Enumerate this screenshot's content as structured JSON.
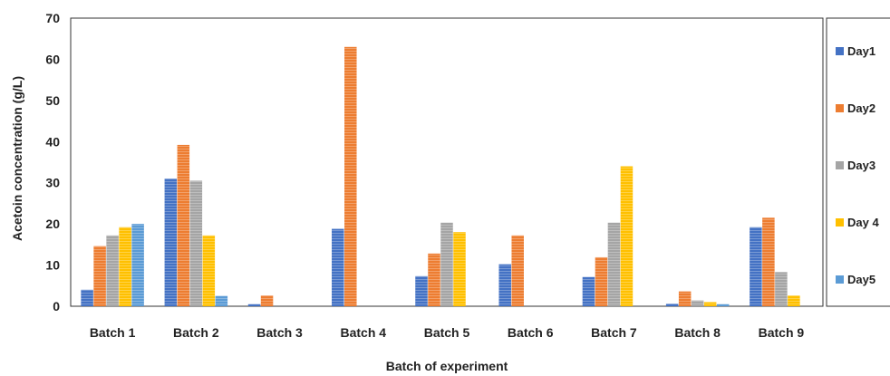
{
  "chart_data": {
    "type": "bar",
    "title": "",
    "xlabel": "Batch of experiment",
    "ylabel": "Acetoin concentration (g/L)",
    "ylim": [
      0,
      70
    ],
    "yticks": [
      0,
      10,
      20,
      30,
      40,
      50,
      60,
      70
    ],
    "grid": false,
    "legend_position": "right",
    "categories": [
      "Batch 1",
      "Batch 2",
      "Batch 3",
      "Batch 4",
      "Batch 5",
      "Batch 6",
      "Batch 7",
      "Batch 8",
      "Batch 9"
    ],
    "series": [
      {
        "name": "Day1",
        "color": "#4472c4",
        "values": [
          4.0,
          31.0,
          0.5,
          18.8,
          7.3,
          10.2,
          7.1,
          0.6,
          19.2
        ]
      },
      {
        "name": "Day2",
        "color": "#ed7d31",
        "values": [
          14.6,
          39.2,
          2.6,
          63.0,
          12.8,
          17.2,
          11.9,
          3.6,
          21.5
        ]
      },
      {
        "name": "Day3",
        "color": "#a5a5a5",
        "values": [
          17.2,
          30.5,
          0,
          0,
          20.3,
          0,
          20.3,
          1.4,
          8.3
        ]
      },
      {
        "name": "Day 4",
        "color": "#ffc000",
        "values": [
          19.2,
          17.2,
          0,
          0,
          18.0,
          0,
          34.0,
          1.0,
          2.6
        ]
      },
      {
        "name": "Day5",
        "color": "#5b9bd5",
        "values": [
          20.0,
          2.5,
          0,
          0,
          0,
          0,
          0,
          0.5,
          0
        ]
      }
    ]
  }
}
